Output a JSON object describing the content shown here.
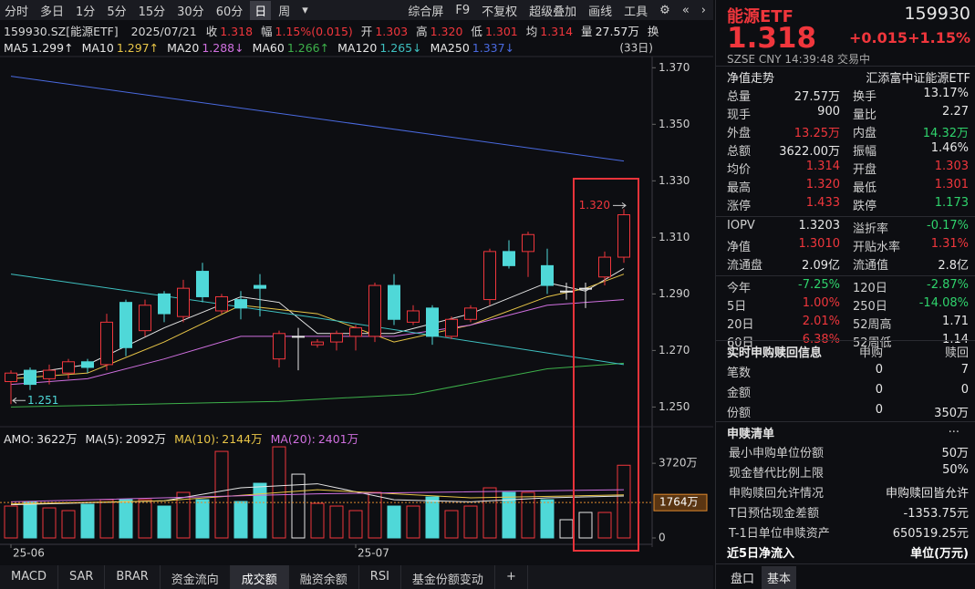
{
  "toolbar": {
    "periods": [
      "分时",
      "多日",
      "1分",
      "5分",
      "15分",
      "30分",
      "60分",
      "日",
      "周",
      "▾"
    ],
    "active": "日",
    "actions": [
      "综合屏",
      "F9",
      "不复权",
      "超级叠加",
      "画线",
      "工具",
      "⚙",
      "«",
      "›"
    ]
  },
  "info_bar": {
    "code": "159930.SZ[能源ETF]",
    "date": "2025/07/21",
    "fields": [
      {
        "label": "收",
        "value": "1.318"
      },
      {
        "label": "幅",
        "value": "1.15%(0.015)"
      },
      {
        "label": "开",
        "value": "1.303"
      },
      {
        "label": "高",
        "value": "1.320"
      },
      {
        "label": "低",
        "value": "1.301"
      },
      {
        "label": "均",
        "value": "1.314"
      },
      {
        "label": "量",
        "value": "27.57万"
      }
    ],
    "extra": "换"
  },
  "chart_data": {
    "type": "candlestick",
    "count_label": "(33日)",
    "categories": [
      "25-06",
      null,
      null,
      null,
      null,
      null,
      null,
      null,
      null,
      null,
      null,
      null,
      null,
      null,
      null,
      null,
      null,
      null,
      "25-07",
      null,
      null,
      null,
      null,
      null,
      null,
      null,
      null,
      null,
      null,
      null,
      null,
      null,
      null
    ],
    "open": [
      1.259,
      1.263,
      1.26,
      1.262,
      1.266,
      1.265,
      1.287,
      1.277,
      1.29,
      1.282,
      1.298,
      1.284,
      1.288,
      1.293,
      1.267,
      1.275,
      1.272,
      1.273,
      1.275,
      1.275,
      1.293,
      1.28,
      1.285,
      1.275,
      1.281,
      1.288,
      1.305,
      1.305,
      1.3,
      1.291,
      1.292,
      1.296,
      1.303
    ],
    "high": [
      1.263,
      1.264,
      1.265,
      1.267,
      1.267,
      1.283,
      1.288,
      1.288,
      1.291,
      1.295,
      1.301,
      1.29,
      1.291,
      1.297,
      1.277,
      1.278,
      1.274,
      1.277,
      1.279,
      1.294,
      1.297,
      1.286,
      1.286,
      1.282,
      1.286,
      1.306,
      1.309,
      1.312,
      1.306,
      1.294,
      1.294,
      1.305,
      1.32
    ],
    "low": [
      1.251,
      1.256,
      1.258,
      1.26,
      1.262,
      1.263,
      1.268,
      1.275,
      1.28,
      1.28,
      1.287,
      1.283,
      1.281,
      1.282,
      1.264,
      1.263,
      1.271,
      1.27,
      1.27,
      1.273,
      1.279,
      1.279,
      1.272,
      1.274,
      1.28,
      1.286,
      1.299,
      1.296,
      1.29,
      1.288,
      1.285,
      1.293,
      1.301
    ],
    "close": [
      1.262,
      1.258,
      1.263,
      1.266,
      1.264,
      1.28,
      1.271,
      1.286,
      1.283,
      1.292,
      1.289,
      1.289,
      1.285,
      1.292,
      1.276,
      1.275,
      1.273,
      1.276,
      1.278,
      1.293,
      1.281,
      1.284,
      1.275,
      1.281,
      1.285,
      1.305,
      1.3,
      1.311,
      1.293,
      1.291,
      1.292,
      1.303,
      1.318
    ],
    "up_color": "#f0363c",
    "down_color": "#4fd8d8",
    "flat_color": "#e6e6e6",
    "ylim": [
      1.244,
      1.373
    ],
    "yticks": [
      {
        "value": 1.25,
        "label": "1.250"
      },
      {
        "value": 1.27,
        "label": "1.270"
      },
      {
        "value": 1.29,
        "label": "1.290"
      },
      {
        "value": 1.31,
        "label": "1.310"
      },
      {
        "value": 1.33,
        "label": "1.330"
      },
      {
        "value": 1.35,
        "label": "1.350"
      },
      {
        "value": 1.37,
        "label": "1.370"
      }
    ],
    "high_mark": {
      "value": 1.32,
      "label": "1.320"
    },
    "low_mark": {
      "value": 1.251,
      "label": "1.251"
    },
    "series": [
      {
        "name": "MA5",
        "label": "1.299↑",
        "color": "#e6e6e6",
        "x": [
          0,
          4,
          8,
          12,
          14,
          16,
          20,
          24,
          28,
          30,
          32
        ],
        "values": [
          1.261,
          1.265,
          1.278,
          1.289,
          1.287,
          1.276,
          1.276,
          1.283,
          1.294,
          1.291,
          1.299
        ]
      },
      {
        "name": "MA10",
        "label": "1.297↑",
        "color": "#e8c547",
        "x": [
          0,
          4,
          8,
          12,
          16,
          20,
          24,
          28,
          30,
          32
        ],
        "values": [
          1.26,
          1.262,
          1.273,
          1.286,
          1.283,
          1.273,
          1.279,
          1.289,
          1.292,
          1.297
        ]
      },
      {
        "name": "MA20",
        "label": "1.288↓",
        "color": "#d070e0",
        "x": [
          0,
          4,
          8,
          12,
          16,
          20,
          24,
          28,
          32
        ],
        "values": [
          1.258,
          1.26,
          1.267,
          1.275,
          1.275,
          1.275,
          1.279,
          1.286,
          1.288
        ]
      },
      {
        "name": "MA60",
        "label": "1.266↑",
        "color": "#3db04a",
        "x": [
          0,
          14,
          21,
          28,
          32
        ],
        "values": [
          1.25,
          1.252,
          1.2545,
          1.2635,
          1.2655
        ]
      },
      {
        "name": "MA120",
        "label": "1.265↓",
        "color": "#3ec0c0",
        "x": [
          0,
          16,
          32
        ],
        "values": [
          1.297,
          1.2815,
          1.265
        ]
      },
      {
        "name": "MA250",
        "label": "1.337↓",
        "color": "#4a6ae0",
        "x": [
          0,
          16,
          32
        ],
        "values": [
          1.367,
          1.352,
          1.337
        ]
      }
    ],
    "volume": {
      "values": [
        1589,
        1816,
        1498,
        1362,
        1680,
        1907,
        1907,
        1907,
        1589,
        2270,
        1907,
        4313,
        1816,
        2724,
        4540,
        3178,
        1725,
        1589,
        1362,
        2270,
        1589,
        1589,
        2043,
        1362,
        1589,
        2497,
        2270,
        2270,
        1907,
        908,
        1271,
        1271,
        3622
      ],
      "ylim": [
        0,
        4770
      ],
      "yticks": [
        0,
        {
          "value": 3720,
          "label": "3720万"
        }
      ],
      "current": {
        "value": 1764,
        "label": "1764万"
      },
      "legend": [
        {
          "name": "AMO:",
          "label": "3622万",
          "color": "#e6e6e6"
        },
        {
          "name": "MA(5):",
          "label": "2092万",
          "color": "#e6e6e6"
        },
        {
          "name": "MA(10):",
          "label": "2144万",
          "color": "#e8c547"
        },
        {
          "name": "MA(20):",
          "label": "2401万",
          "color": "#d070e0"
        }
      ],
      "series": [
        {
          "color": "#e6e6e6",
          "x": [
            0,
            8,
            12,
            16,
            20,
            24,
            28,
            32
          ],
          "values": [
            1650,
            1850,
            2500,
            2700,
            1900,
            1800,
            2000,
            2092
          ]
        },
        {
          "color": "#e8c547",
          "x": [
            0,
            8,
            16,
            24,
            32
          ],
          "values": [
            1700,
            1850,
            2400,
            2000,
            2144
          ]
        },
        {
          "color": "#d070e0",
          "x": [
            0,
            16,
            32
          ],
          "values": [
            1800,
            2200,
            2401
          ]
        }
      ]
    }
  },
  "bottom_tabs": {
    "items": [
      "MACD",
      "SAR",
      "BRAR",
      "资金流向",
      "成交额",
      "融资余额",
      "RSI",
      "基金份额变动",
      "+"
    ],
    "active": "成交额"
  },
  "quote": {
    "name": "能源ETF",
    "code": "159930",
    "price": "1.318",
    "change": "+0.015",
    "pct": "+1.15%",
    "status": "SZSE  CNY  14:39:48  交易中",
    "section": "净值走势",
    "fund": "汇添富中证能源ETF",
    "rows": [
      {
        "cells": [
          "总量",
          "27.57万",
          "换手",
          "13.17%"
        ],
        "colors": [
          "#e6e6e6",
          "#e6e6e6"
        ]
      },
      {
        "cells": [
          "现手",
          "900",
          "量比",
          "2.27"
        ],
        "colors": [
          "#e6e6e6",
          "#e6e6e6"
        ]
      },
      {
        "cells": [
          "外盘",
          "13.25万",
          "内盘",
          "14.32万"
        ],
        "colors": [
          "#f0363c",
          "#2fd36c"
        ]
      },
      {
        "cells": [
          "总额",
          "3622.00万",
          "振幅",
          "1.46%"
        ],
        "colors": [
          "#e6e6e6",
          "#e6e6e6"
        ]
      },
      {
        "cells": [
          "均价",
          "1.314",
          "开盘",
          "1.303"
        ],
        "colors": [
          "#f0363c",
          "#f0363c"
        ]
      },
      {
        "cells": [
          "最高",
          "1.320",
          "最低",
          "1.301"
        ],
        "colors": [
          "#f0363c",
          "#f0363c"
        ]
      },
      {
        "cells": [
          "涨停",
          "1.433",
          "跌停",
          "1.173"
        ],
        "colors": [
          "#f0363c",
          "#2fd36c"
        ]
      },
      {
        "cells": [
          "IOPV",
          "1.3203",
          "溢折率",
          "-0.17%"
        ],
        "colors": [
          "#e6e6e6",
          "#2fd36c"
        ]
      },
      {
        "cells": [
          "净值",
          "1.3010",
          "开贴水率",
          "1.31%"
        ],
        "colors": [
          "#f0363c",
          "#f0363c"
        ]
      },
      {
        "cells": [
          "流通盘",
          "2.09亿",
          "流通值",
          "2.8亿"
        ],
        "colors": [
          "#e6e6e6",
          "#e6e6e6"
        ]
      },
      {
        "cells": [
          "今年",
          "-7.25%",
          "120日",
          "-2.87%"
        ],
        "colors": [
          "#2fd36c",
          "#2fd36c"
        ]
      },
      {
        "cells": [
          "5日",
          "1.00%",
          "250日",
          "-14.08%"
        ],
        "colors": [
          "#f0363c",
          "#2fd36c"
        ]
      },
      {
        "cells": [
          "20日",
          "2.01%",
          "52周高",
          "1.71"
        ],
        "colors": [
          "#f0363c",
          "#e6e6e6"
        ]
      },
      {
        "cells": [
          "60日",
          "6.38%",
          "52周低",
          "1.14"
        ],
        "colors": [
          "#f0363c",
          "#e6e6e6"
        ]
      }
    ],
    "subscription": {
      "title": "实时申购赎回信息",
      "columns": [
        "申购",
        "赎回"
      ],
      "rows": [
        [
          "笔数",
          "0",
          "7"
        ],
        [
          "金额",
          "0",
          "0"
        ],
        [
          "份额",
          "0",
          "350万"
        ]
      ]
    },
    "list": {
      "title": "申赎清单",
      "more": "...",
      "rows": [
        [
          "最小申购单位份额",
          "50万"
        ],
        [
          "现金替代比例上限",
          "50%"
        ],
        [
          "申购赎回允许情况",
          "申购赎回皆允许"
        ],
        [
          "T日预估现金差额",
          "-1353.75元"
        ],
        [
          "T-1日单位申赎资产",
          "650519.25元"
        ]
      ]
    },
    "flow": {
      "title": "近5日净流入",
      "unit": "单位(万元)"
    },
    "tabs": [
      "盘口",
      "基本"
    ],
    "active_tab": "基本"
  }
}
